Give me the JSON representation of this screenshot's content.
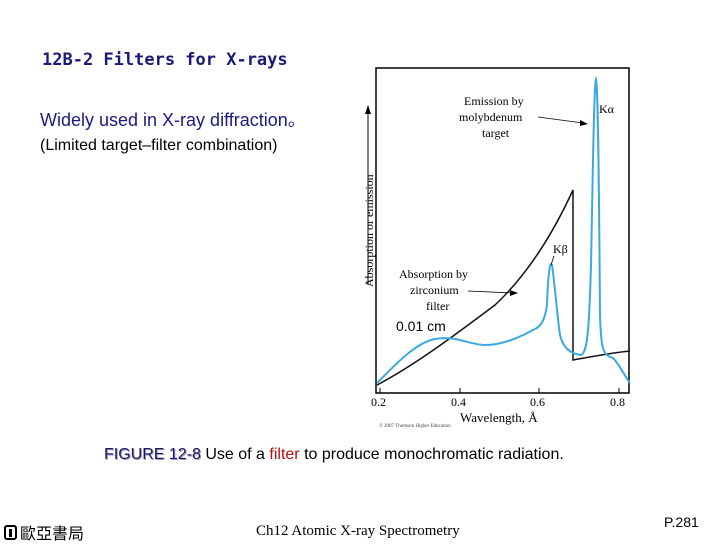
{
  "slide": {
    "title": "12B-2 Filters for X-rays",
    "bullet_1": "Widely used in X-ray diffraction。",
    "bullet_2": "(Limited target–filter combination)",
    "thickness_label": "0.01 cm"
  },
  "caption": {
    "label": "FIGURE 12-8",
    "text_a": " Use of a ",
    "keyword": "filter",
    "text_b": " to produce monochromatic radiation."
  },
  "footer": {
    "publisher": "歐亞書局",
    "course": "Ch12 Atomic X-ray Spectrometry",
    "page": "P.281"
  },
  "figure": {
    "y_axis_label": "Absorption or emission",
    "x_axis_label": "Wavelength, Å",
    "x_ticks": [
      "0.2",
      "0.4",
      "0.6",
      "0.8"
    ],
    "emission_annotation": [
      "Emission by",
      "molybdenum",
      "target"
    ],
    "absorption_annotation": [
      "Absorption by",
      "zirconium",
      "filter"
    ],
    "k_alpha_label": "Kα",
    "k_beta_label": "Kβ",
    "copyright": "© 2007 Thomson Higher Education",
    "colors": {
      "emission": "#3ba9e0",
      "absorption": "#111111",
      "text_dark": "#1a1a80",
      "filter_word": "#b01010"
    }
  }
}
